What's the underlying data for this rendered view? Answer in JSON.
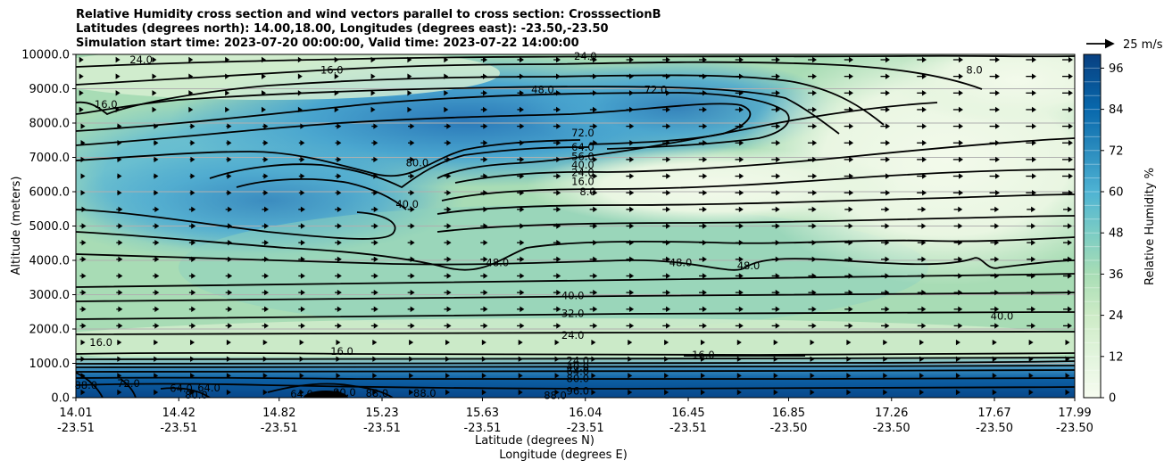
{
  "title_lines": [
    "Relative Humidity cross section and wind vectors parallel to cross section: CrosssectionB",
    "Latitudes (degrees north): 14.00,18.00, Longitudes (degrees east): -23.50,-23.50",
    "Simulation start time: 2023-07-20 00:00:00, Valid time: 2023-07-22 14:00:00"
  ],
  "chart_data": {
    "type": "heatmap",
    "ylabel": "Altitude (meters)",
    "xlabel_lines": [
      "Latitude (degrees N)",
      "Longitude (degrees E)"
    ],
    "colorbar_label": "Relative Humidity %",
    "colorbar_ticks": [
      "0",
      "12",
      "24",
      "36",
      "48",
      "60",
      "72",
      "84",
      "96"
    ],
    "colorbar_range": [
      0,
      100
    ],
    "y_ticks": [
      "0.0",
      "1000.0",
      "2000.0",
      "3000.0",
      "4000.0",
      "5000.0",
      "6000.0",
      "7000.0",
      "8000.0",
      "9000.0",
      "10000.0"
    ],
    "ylim": [
      0,
      10000
    ],
    "x_ticks": [
      {
        "lat": "14.01",
        "lon": "-23.51"
      },
      {
        "lat": "14.42",
        "lon": "-23.51"
      },
      {
        "lat": "14.82",
        "lon": "-23.51"
      },
      {
        "lat": "15.23",
        "lon": "-23.51"
      },
      {
        "lat": "15.63",
        "lon": "-23.51"
      },
      {
        "lat": "16.04",
        "lon": "-23.51"
      },
      {
        "lat": "16.45",
        "lon": "-23.51"
      },
      {
        "lat": "16.85",
        "lon": "-23.50"
      },
      {
        "lat": "17.26",
        "lon": "-23.50"
      },
      {
        "lat": "17.67",
        "lon": "-23.50"
      },
      {
        "lat": "17.99",
        "lon": "-23.50"
      }
    ],
    "quiver_key": "25 m/s",
    "grid": "horizontal",
    "contour_labels": [
      {
        "text": "24.0",
        "lat": 14.27,
        "alt": 9850
      },
      {
        "text": "16.0",
        "lat": 15.03,
        "alt": 9550
      },
      {
        "text": "24.0",
        "lat": 16.04,
        "alt": 9950
      },
      {
        "text": "8.0",
        "lat": 17.59,
        "alt": 9550
      },
      {
        "text": "16.0",
        "lat": 14.13,
        "alt": 8550
      },
      {
        "text": "48.0",
        "lat": 15.87,
        "alt": 8980
      },
      {
        "text": "72.0",
        "lat": 16.32,
        "alt": 8980
      },
      {
        "text": "72.0",
        "lat": 16.03,
        "alt": 7710
      },
      {
        "text": "64.0",
        "lat": 16.03,
        "alt": 7300
      },
      {
        "text": "56.0",
        "lat": 16.03,
        "alt": 7020
      },
      {
        "text": "40.0",
        "lat": 16.03,
        "alt": 6780
      },
      {
        "text": "24.0",
        "lat": 16.03,
        "alt": 6560
      },
      {
        "text": "16.0",
        "lat": 16.03,
        "alt": 6300
      },
      {
        "text": "8.0",
        "lat": 16.05,
        "alt": 6000
      },
      {
        "text": "80.0",
        "lat": 15.37,
        "alt": 6840
      },
      {
        "text": "40.0",
        "lat": 15.33,
        "alt": 5630
      },
      {
        "text": "48.0",
        "lat": 15.69,
        "alt": 3930
      },
      {
        "text": "48.0",
        "lat": 16.42,
        "alt": 3930
      },
      {
        "text": "48.0",
        "lat": 16.69,
        "alt": 3850
      },
      {
        "text": "40.0",
        "lat": 15.99,
        "alt": 2980
      },
      {
        "text": "32.0",
        "lat": 15.99,
        "alt": 2460
      },
      {
        "text": "24.0",
        "lat": 15.99,
        "alt": 1820
      },
      {
        "text": "40.0",
        "lat": 17.7,
        "alt": 2380
      },
      {
        "text": "16.0",
        "lat": 14.11,
        "alt": 1610
      },
      {
        "text": "16.0",
        "lat": 15.07,
        "alt": 1350
      },
      {
        "text": "16.0",
        "lat": 16.51,
        "alt": 1250
      },
      {
        "text": "24.0",
        "lat": 16.01,
        "alt": 1080
      },
      {
        "text": "40.0",
        "lat": 16.01,
        "alt": 900
      },
      {
        "text": "64.0",
        "lat": 16.01,
        "alt": 760
      },
      {
        "text": "80.0",
        "lat": 16.01,
        "alt": 560
      },
      {
        "text": "96.0",
        "lat": 16.01,
        "alt": 200
      },
      {
        "text": "88.0",
        "lat": 15.92,
        "alt": 60
      },
      {
        "text": "88.0",
        "lat": 14.05,
        "alt": 360
      },
      {
        "text": "72.0",
        "lat": 14.22,
        "alt": 420
      },
      {
        "text": "64.0",
        "lat": 14.43,
        "alt": 270
      },
      {
        "text": "80.0",
        "lat": 14.49,
        "alt": 80
      },
      {
        "text": "64.0",
        "lat": 14.54,
        "alt": 280
      },
      {
        "text": "64.0",
        "lat": 14.91,
        "alt": 100
      },
      {
        "text": "80.0",
        "lat": 15.08,
        "alt": 150
      },
      {
        "text": "88.0",
        "lat": 15.21,
        "alt": 130
      },
      {
        "text": "88.0",
        "lat": 15.4,
        "alt": 130
      }
    ]
  }
}
